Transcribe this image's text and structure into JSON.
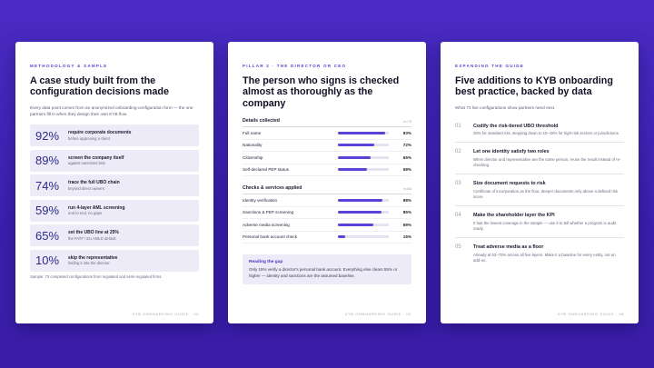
{
  "pages": [
    {
      "kicker": "METHODOLOGY & SAMPLE",
      "title": "A case study built from the configuration decisions made",
      "intro": "Every data point comes from an anonymized onboarding-configuration form — the one partners fill in when they design their own KYB flow.",
      "stats": [
        {
          "pct": "92%",
          "main": "require corporate documents",
          "sub": "before approving a client",
          "value": 92
        },
        {
          "pct": "89%",
          "main": "screen the company itself",
          "sub": "against sanctions lists",
          "value": 89
        },
        {
          "pct": "74%",
          "main": "trace the full UBO chain",
          "sub": "beyond direct owners",
          "value": 74
        },
        {
          "pct": "59%",
          "main": "run 4-layer AML screening",
          "sub": "end to end, no gaps",
          "value": 59
        },
        {
          "pct": "65%",
          "main": "set the UBO line at 25%",
          "sub": "the FATF / EU AMLD default",
          "value": 65
        },
        {
          "pct": "10%",
          "main": "skip the representative",
          "sub": "folding it into the director",
          "value": 10
        }
      ],
      "note": "Sample: 73 completed configurations from regulated and semi-regulated firms.",
      "footer": "KYB ONBOARDING GUIDE · 02"
    },
    {
      "kicker": "PILLAR 2 · THE DIRECTOR OR CEO",
      "title": "The person who signs is checked almost as thoroughly as the company",
      "sections": [
        {
          "heading": "Details collected",
          "n": "n=73",
          "rows": [
            {
              "label": "Full name",
              "pct": "93%",
              "value": 93
            },
            {
              "label": "Nationality",
              "pct": "72%",
              "value": 72
            },
            {
              "label": "Citizenship",
              "pct": "65%",
              "value": 65
            },
            {
              "label": "Self-declared PEP status",
              "pct": "58%",
              "value": 58
            }
          ]
        },
        {
          "heading": "Checks & services applied",
          "n": "n=66",
          "rows": [
            {
              "label": "Identity verification",
              "pct": "88%",
              "value": 88
            },
            {
              "label": "Sanctions & PEP screening",
              "pct": "85%",
              "value": 85
            },
            {
              "label": "Adverse media screening",
              "pct": "69%",
              "value": 69
            },
            {
              "label": "Personal bank account check",
              "pct": "15%",
              "value": 15
            }
          ]
        }
      ],
      "gap": {
        "heading": "Reading the gap",
        "text": "Only 15% verify a director's personal bank account. Everything else clears 55% or higher — identity and sanctions are the assumed baseline."
      },
      "footer": "KYB ONBOARDING GUIDE · 04"
    },
    {
      "kicker": "EXPANDING THE GUIDE",
      "title": "Five additions to KYB onboarding best practice, backed by data",
      "intro": "What 73 live configurations show partners need next.",
      "items": [
        {
          "num": "01",
          "heading": "Codify the risk-tiered UBO threshold",
          "text": "25% for standard risk, stepping down to 10–15% for high-risk sectors or jurisdictions."
        },
        {
          "num": "02",
          "heading": "Let one identity satisfy two roles",
          "text": "When director and representative are the same person, reuse the result instead of re-checking."
        },
        {
          "num": "03",
          "heading": "Size document requests to risk",
          "text": "Certificate of incorporation as the floor, deeper documents only above a defined risk score."
        },
        {
          "num": "04",
          "heading": "Make the shareholder layer the KPI",
          "text": "It has the lowest coverage in the sample — use it to tell whether a program is audit ready."
        },
        {
          "num": "05",
          "heading": "Treat adverse media as a floor",
          "text": "Already at 63–70% across all five layers. Make it a baseline for every entity, not an add-on."
        }
      ],
      "footer": "KYB ONBOARDING GUIDE · 06"
    }
  ]
}
